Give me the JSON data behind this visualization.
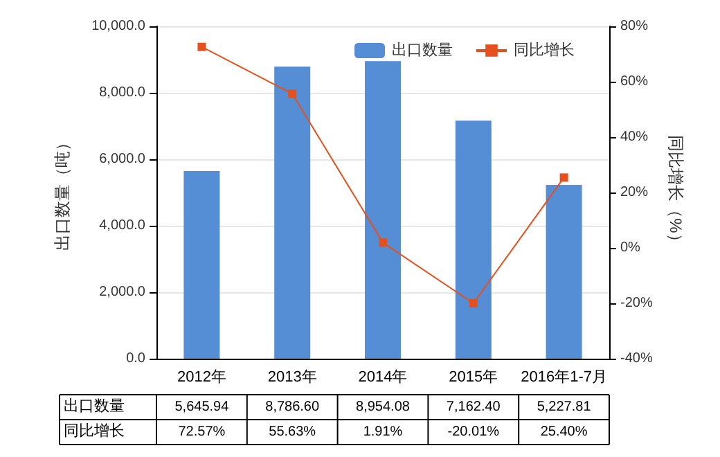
{
  "chart_data": {
    "type": "bar",
    "categories": [
      "2012年",
      "2013年",
      "2014年",
      "2015年",
      "2016年1-7月"
    ],
    "ylabel": "出口数量（吨）",
    "y2label": "同比增长（%）",
    "series": [
      {
        "name": "出口数量",
        "color": "#558ed5",
        "values": [
          5645.94,
          8786.6,
          8954.08,
          7162.4,
          5227.81
        ],
        "value_labels": [
          "5,645.94",
          "8,786.60",
          "8,954.08",
          "7,162.40",
          "5,227.81"
        ]
      },
      {
        "name": "同比增长",
        "type": "line",
        "axis": "y2",
        "color": "#e4501e",
        "marker": "square",
        "values": [
          72.57,
          55.63,
          1.91,
          -20.01,
          25.4
        ],
        "value_labels": [
          "72.57%",
          "55.63%",
          "1.91%",
          "-20.01%",
          "25.40%"
        ]
      }
    ],
    "ylim": [
      0,
      10000
    ],
    "yticks": [
      {
        "value": 0,
        "label": "0.0"
      },
      {
        "value": 2000,
        "label": "2,000.0"
      },
      {
        "value": 4000,
        "label": "4,000.0"
      },
      {
        "value": 6000,
        "label": "6,000.0"
      },
      {
        "value": 8000,
        "label": "8,000.0"
      },
      {
        "value": 10000,
        "label": "10,000.0"
      }
    ],
    "y2lim": [
      -40,
      80
    ],
    "y2ticks": [
      {
        "value": -40,
        "label": "-40%"
      },
      {
        "value": -20,
        "label": "-20%"
      },
      {
        "value": 0,
        "label": "0%"
      },
      {
        "value": 20,
        "label": "20%"
      },
      {
        "value": 40,
        "label": "40%"
      },
      {
        "value": 60,
        "label": "60%"
      },
      {
        "value": 80,
        "label": "80%"
      }
    ],
    "grid": "y",
    "legend": "top right"
  }
}
